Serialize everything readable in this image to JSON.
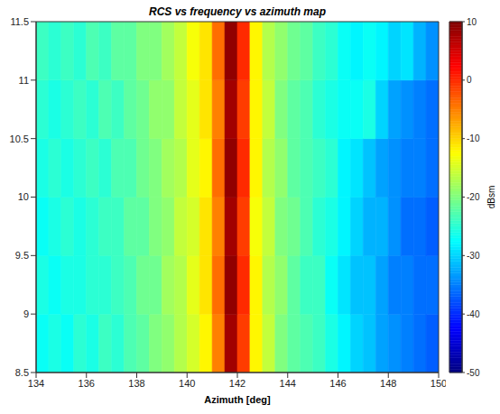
{
  "chart_data": {
    "type": "heatmap",
    "title": "RCS vs frequency vs azimuth map",
    "x_label": "Azimuth [deg]",
    "xlim": [
      134,
      150
    ],
    "xticks": [
      134,
      136,
      138,
      140,
      142,
      144,
      146,
      148,
      150
    ],
    "ylim": [
      8.5,
      11.5
    ],
    "yticks": [
      8.5,
      9,
      9.5,
      10,
      10.5,
      11,
      11.5
    ],
    "grid": false,
    "x_bins": [
      134,
      134.5,
      135,
      135.5,
      136,
      136.5,
      137,
      137.5,
      138,
      138.5,
      139,
      139.5,
      140,
      140.5,
      141,
      141.5,
      142,
      142.5,
      143,
      143.5,
      144,
      144.5,
      145,
      145.5,
      146,
      146.5,
      147,
      147.5,
      148,
      148.5,
      149,
      149.5,
      150
    ],
    "y_bins": [
      8.5,
      9,
      9.5,
      10,
      10.5,
      11,
      11.5
    ],
    "values": [
      [
        -27,
        -26,
        -27,
        -25,
        -26,
        -24,
        -25,
        -23,
        -22,
        -20,
        -19,
        -17,
        -15,
        -12,
        -5,
        8,
        -1,
        -12,
        -16,
        -20,
        -22,
        -23,
        -24,
        -26,
        -28,
        -30,
        -31,
        -33,
        -34,
        -35,
        -36,
        -37
      ],
      [
        -26,
        -27,
        -26,
        -26,
        -25,
        -25,
        -24,
        -23,
        -21,
        -21,
        -18,
        -17,
        -14,
        -11,
        -4,
        9,
        0,
        -12,
        -17,
        -19,
        -22,
        -24,
        -24,
        -27,
        -29,
        -31,
        -31,
        -33,
        -35,
        -35,
        -36,
        -36
      ],
      [
        -27,
        -26,
        -25,
        -26,
        -25,
        -24,
        -24,
        -22,
        -22,
        -20,
        -19,
        -16,
        -15,
        -11,
        -5,
        8,
        -1,
        -13,
        -16,
        -20,
        -21,
        -23,
        -25,
        -26,
        -28,
        -30,
        -32,
        -32,
        -34,
        -36,
        -36,
        -37
      ],
      [
        -26,
        -25,
        -26,
        -25,
        -24,
        -25,
        -23,
        -23,
        -21,
        -20,
        -18,
        -17,
        -14,
        -12,
        -4,
        9,
        0,
        -12,
        -17,
        -19,
        -22,
        -23,
        -24,
        -25,
        -28,
        -29,
        -31,
        -33,
        -34,
        -35,
        -35,
        -36
      ],
      [
        -25,
        -26,
        -25,
        -24,
        -25,
        -23,
        -24,
        -22,
        -21,
        -19,
        -19,
        -16,
        -14,
        -11,
        -5,
        8,
        -1,
        -12,
        -16,
        -20,
        -22,
        -23,
        -25,
        -26,
        -27,
        -27,
        -26,
        -30,
        -33,
        -34,
        -35,
        -36
      ],
      [
        -24,
        -25,
        -24,
        -25,
        -23,
        -24,
        -22,
        -22,
        -20,
        -20,
        -18,
        -16,
        -13,
        -11,
        -4,
        9,
        0,
        -12,
        -17,
        -19,
        -21,
        -22,
        -24,
        -25,
        -27,
        -28,
        -27,
        -28,
        -30,
        -29,
        -32,
        -34
      ]
    ],
    "colorbar": {
      "label": "dBsm",
      "range": [
        -50,
        10
      ],
      "ticks": [
        -50,
        -40,
        -30,
        -20,
        -10,
        0,
        10
      ]
    }
  }
}
